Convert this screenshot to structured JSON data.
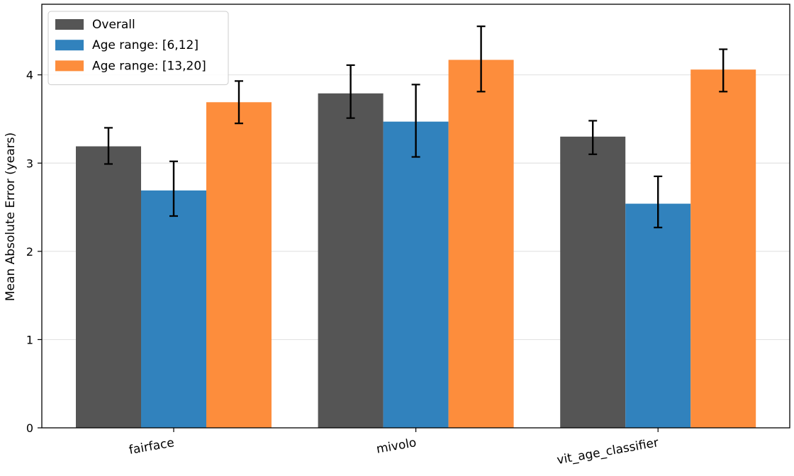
{
  "chart_data": {
    "type": "bar",
    "title": "",
    "xlabel": "",
    "ylabel": "Mean Absolute Error (years)",
    "categories": [
      "fairface",
      "mivolo",
      "vit_age_classifier"
    ],
    "series": [
      {
        "name": "Overall",
        "color": "#555555",
        "values": [
          3.19,
          3.79,
          3.3
        ],
        "err_low": [
          2.99,
          3.51,
          3.1
        ],
        "err_high": [
          3.4,
          4.11,
          3.48
        ]
      },
      {
        "name": "Age range: [6,12]",
        "color": "#3182bd",
        "values": [
          2.69,
          3.47,
          2.54
        ],
        "err_low": [
          2.4,
          3.07,
          2.27
        ],
        "err_high": [
          3.02,
          3.89,
          2.85
        ]
      },
      {
        "name": "Age range: [13,20]",
        "color": "#fd8d3c",
        "values": [
          3.69,
          4.17,
          4.06
        ],
        "err_low": [
          3.45,
          3.81,
          3.81
        ],
        "err_high": [
          3.93,
          4.55,
          4.29
        ]
      }
    ],
    "ylim": [
      0,
      4.8
    ],
    "yticks": [
      0,
      1,
      2,
      3,
      4
    ],
    "grid": "y",
    "legend_position": "top-left"
  }
}
